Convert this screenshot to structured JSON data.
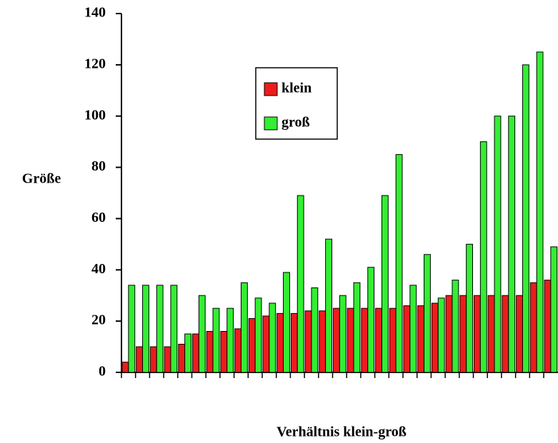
{
  "chart_data": {
    "type": "bar",
    "categories": [
      null,
      null,
      null,
      null,
      null,
      null,
      null,
      null,
      null,
      null,
      null,
      null,
      null,
      null,
      null,
      null,
      null,
      null,
      null,
      null,
      null,
      null,
      null,
      null,
      null,
      null,
      null,
      null,
      null,
      null,
      null
    ],
    "series": [
      {
        "name": "klein",
        "color": "#ee1c1c",
        "values": [
          4,
          10,
          10,
          10,
          11,
          15,
          16,
          16,
          17,
          21,
          22,
          23,
          23,
          24,
          24,
          25,
          25,
          25,
          25,
          25,
          26,
          26,
          27,
          30,
          30,
          30,
          30,
          30,
          30,
          35,
          36
        ]
      },
      {
        "name": "groß",
        "color": "#33ee33",
        "values": [
          34,
          34,
          34,
          34,
          15,
          30,
          25,
          25,
          35,
          29,
          27,
          39,
          69,
          33,
          52,
          30,
          35,
          41,
          69,
          85,
          34,
          46,
          29,
          36,
          50,
          90,
          100,
          100,
          120,
          125,
          49
        ]
      }
    ],
    "y_label": "Größe",
    "x_label": "Verhältnis klein-groß",
    "ylim": [
      0,
      140
    ],
    "yticks": [
      0,
      20,
      40,
      60,
      80,
      100,
      120,
      140
    ],
    "grid": false,
    "legend": "upper center"
  }
}
